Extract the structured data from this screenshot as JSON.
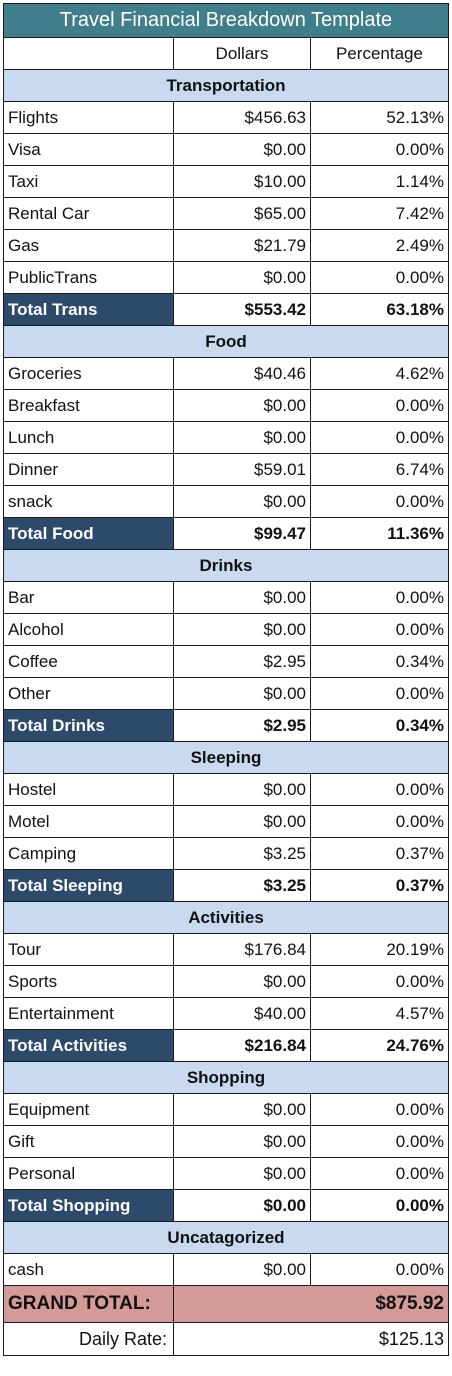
{
  "title": "Travel Financial Breakdown Template",
  "columns": {
    "dollars": "Dollars",
    "percentage": "Percentage"
  },
  "sections": [
    {
      "name": "Transportation",
      "rows": [
        {
          "label": "Flights",
          "dollars": "$456.63",
          "percentage": "52.13%"
        },
        {
          "label": "Visa",
          "dollars": "$0.00",
          "percentage": "0.00%"
        },
        {
          "label": "Taxi",
          "dollars": "$10.00",
          "percentage": "1.14%"
        },
        {
          "label": "Rental Car",
          "dollars": "$65.00",
          "percentage": "7.42%"
        },
        {
          "label": "Gas",
          "dollars": "$21.79",
          "percentage": "2.49%"
        },
        {
          "label": "PublicTrans",
          "dollars": "$0.00",
          "percentage": "0.00%"
        }
      ],
      "total": {
        "label": "Total Trans",
        "dollars": "$553.42",
        "percentage": "63.18%"
      }
    },
    {
      "name": "Food",
      "rows": [
        {
          "label": "Groceries",
          "dollars": "$40.46",
          "percentage": "4.62%"
        },
        {
          "label": "Breakfast",
          "dollars": "$0.00",
          "percentage": "0.00%"
        },
        {
          "label": "Lunch",
          "dollars": "$0.00",
          "percentage": "0.00%"
        },
        {
          "label": "Dinner",
          "dollars": "$59.01",
          "percentage": "6.74%"
        },
        {
          "label": "snack",
          "dollars": "$0.00",
          "percentage": "0.00%"
        }
      ],
      "total": {
        "label": "Total Food",
        "dollars": "$99.47",
        "percentage": "11.36%"
      }
    },
    {
      "name": "Drinks",
      "rows": [
        {
          "label": "Bar",
          "dollars": "$0.00",
          "percentage": "0.00%"
        },
        {
          "label": "Alcohol",
          "dollars": "$0.00",
          "percentage": "0.00%"
        },
        {
          "label": "Coffee",
          "dollars": "$2.95",
          "percentage": "0.34%"
        },
        {
          "label": "Other",
          "dollars": "$0.00",
          "percentage": "0.00%"
        }
      ],
      "total": {
        "label": "Total Drinks",
        "dollars": "$2.95",
        "percentage": "0.34%"
      }
    },
    {
      "name": "Sleeping",
      "rows": [
        {
          "label": "Hostel",
          "dollars": "$0.00",
          "percentage": "0.00%"
        },
        {
          "label": "Motel",
          "dollars": "$0.00",
          "percentage": "0.00%"
        },
        {
          "label": "Camping",
          "dollars": "$3.25",
          "percentage": "0.37%"
        }
      ],
      "total": {
        "label": "Total Sleeping",
        "dollars": "$3.25",
        "percentage": "0.37%"
      }
    },
    {
      "name": "Activities",
      "rows": [
        {
          "label": "Tour",
          "dollars": "$176.84",
          "percentage": "20.19%"
        },
        {
          "label": "Sports",
          "dollars": "$0.00",
          "percentage": "0.00%"
        },
        {
          "label": "Entertainment",
          "dollars": "$40.00",
          "percentage": "4.57%"
        }
      ],
      "total": {
        "label": "Total Activities",
        "dollars": "$216.84",
        "percentage": "24.76%"
      }
    },
    {
      "name": "Shopping",
      "rows": [
        {
          "label": "Equipment",
          "dollars": "$0.00",
          "percentage": "0.00%"
        },
        {
          "label": "Gift",
          "dollars": "$0.00",
          "percentage": "0.00%"
        },
        {
          "label": "Personal",
          "dollars": "$0.00",
          "percentage": "0.00%"
        }
      ],
      "total": {
        "label": "Total Shopping",
        "dollars": "$0.00",
        "percentage": "0.00%"
      }
    },
    {
      "name": "Uncatagorized",
      "rows": [
        {
          "label": "cash",
          "dollars": "$0.00",
          "percentage": "0.00%"
        }
      ]
    }
  ],
  "grand_total": {
    "label": "GRAND TOTAL:",
    "value": "$875.92"
  },
  "daily_rate": {
    "label": "Daily Rate:",
    "value": "$125.13"
  },
  "colors": {
    "title_bg": "#3f7e8a",
    "section_bg": "#c9d9ef",
    "total_bg": "#2e4a6b",
    "grand_bg": "#d49a98"
  }
}
